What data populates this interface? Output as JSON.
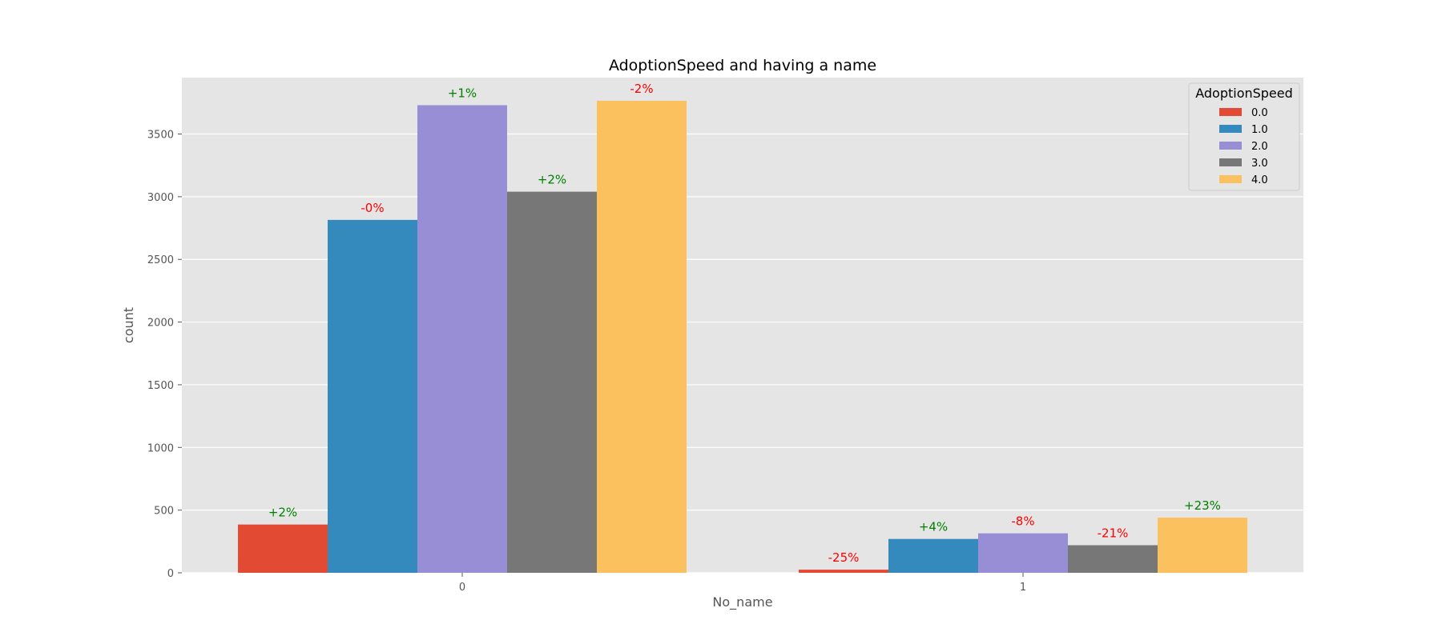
{
  "chart_data": {
    "type": "bar",
    "title": "AdoptionSpeed and having a name",
    "xlabel": "No_name",
    "ylabel": "count",
    "categories": [
      "0",
      "1"
    ],
    "ylim": [
      0,
      3950
    ],
    "yticks": [
      0,
      500,
      1000,
      1500,
      2000,
      2500,
      3000,
      3500
    ],
    "grid": true,
    "legend": {
      "title": "AdoptionSpeed",
      "placement": "top-right"
    },
    "series": [
      {
        "name": "0.0",
        "color": "#E24A33",
        "values": [
          385,
          25
        ],
        "annotations": [
          "+2%",
          "-25%"
        ]
      },
      {
        "name": "1.0",
        "color": "#348ABD",
        "values": [
          2815,
          270
        ],
        "annotations": [
          "-0%",
          "+4%"
        ]
      },
      {
        "name": "2.0",
        "color": "#988ED5",
        "values": [
          3730,
          315
        ],
        "annotations": [
          "+1%",
          "-8%"
        ]
      },
      {
        "name": "3.0",
        "color": "#777777",
        "values": [
          3040,
          220
        ],
        "annotations": [
          "+2%",
          "-21%"
        ]
      },
      {
        "name": "4.0",
        "color": "#FBC15E",
        "values": [
          3765,
          440
        ],
        "annotations": [
          "-2%",
          "+23%"
        ]
      }
    ],
    "annotation_colors": {
      "positive": "#008000",
      "negative": "#FF0000"
    },
    "colors": {
      "panel_background": "#E5E5E5",
      "grid": "#FFFFFF"
    }
  }
}
